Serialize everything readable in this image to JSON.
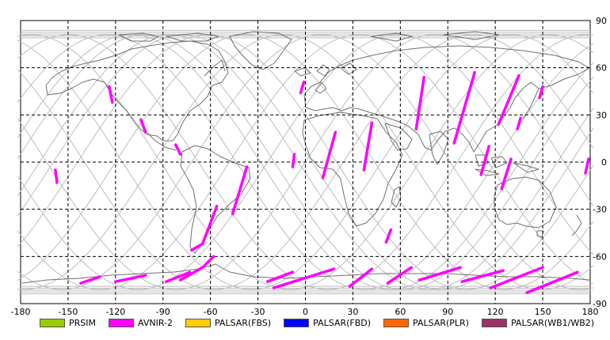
{
  "map": {
    "lon_range": [
      -180,
      180
    ],
    "lat_range": [
      -90,
      90
    ],
    "grid_step": {
      "lon": 30,
      "lat": 30
    },
    "grid_style": "dashed",
    "x_ticks": [
      "-180",
      "-150",
      "-120",
      "-90",
      "-60",
      "-30",
      "0",
      "30",
      "60",
      "90",
      "120",
      "150",
      "180"
    ],
    "y_ticks": [
      "90",
      "60",
      "30",
      "0",
      "-30",
      "-60",
      "-90"
    ],
    "colors": {
      "coastline": "#707070",
      "orbit": "#bdbdbd",
      "grid": "#000000",
      "footprint": "#ff00ff"
    }
  },
  "legend": [
    {
      "label": "PRSIM",
      "color": "#99cc00"
    },
    {
      "label": "AVNIR-2",
      "color": "#ff00ff"
    },
    {
      "label": "PALSAR(FBS)",
      "color": "#ffcc00"
    },
    {
      "label": "PALSAR(FBD)",
      "color": "#0000ff"
    },
    {
      "label": "PALSAR(PLR)",
      "color": "#ff6600"
    },
    {
      "label": "PALSAR(WB1/WB2)",
      "color": "#993366"
    }
  ],
  "footprints": [
    {
      "path": [
        [
          -124,
          48
        ],
        [
          -122,
          38
        ]
      ]
    },
    {
      "path": [
        [
          -104,
          27
        ],
        [
          -101,
          19
        ]
      ]
    },
    {
      "path": [
        [
          -82,
          11
        ],
        [
          -79,
          5
        ]
      ]
    },
    {
      "path": [
        [
          -158,
          -5
        ],
        [
          -157,
          -13
        ]
      ]
    },
    {
      "path": [
        [
          -37,
          -3
        ],
        [
          -46,
          -33
        ]
      ]
    },
    {
      "path": [
        [
          -56,
          -28
        ],
        [
          -65,
          -52
        ],
        [
          -72,
          -56
        ]
      ]
    },
    {
      "path": [
        [
          -58,
          -60
        ],
        [
          -65,
          -67
        ],
        [
          -79,
          -75
        ]
      ]
    },
    {
      "path": [
        [
          -73,
          -70
        ],
        [
          -88,
          -76
        ]
      ]
    },
    {
      "path": [
        [
          -101,
          -72
        ],
        [
          -120,
          -76
        ]
      ]
    },
    {
      "path": [
        [
          -130,
          -73
        ],
        [
          -142,
          -77
        ]
      ]
    },
    {
      "path": [
        [
          -1,
          51
        ],
        [
          -3,
          44
        ]
      ]
    },
    {
      "path": [
        [
          -7,
          5
        ],
        [
          -8,
          -3
        ]
      ]
    },
    {
      "path": [
        [
          19,
          19
        ],
        [
          11,
          -10
        ]
      ]
    },
    {
      "path": [
        [
          42,
          25
        ],
        [
          37,
          -5
        ]
      ]
    },
    {
      "path": [
        [
          54,
          -43
        ],
        [
          51,
          -51
        ]
      ]
    },
    {
      "path": [
        [
          75,
          54
        ],
        [
          70,
          21
        ]
      ]
    },
    {
      "path": [
        [
          107,
          57
        ],
        [
          94,
          12
        ]
      ]
    },
    {
      "path": [
        [
          135,
          55
        ],
        [
          122,
          24
        ]
      ]
    },
    {
      "path": [
        [
          116,
          10
        ],
        [
          111,
          -8
        ]
      ]
    },
    {
      "path": [
        [
          136,
          28
        ],
        [
          134,
          21
        ]
      ]
    },
    {
      "path": [
        [
          150,
          48
        ],
        [
          148,
          41
        ]
      ]
    },
    {
      "path": [
        [
          130,
          2
        ],
        [
          124,
          -17
        ]
      ]
    },
    {
      "path": [
        [
          179,
          2
        ],
        [
          177,
          -7
        ]
      ]
    },
    {
      "path": [
        [
          18,
          -68
        ],
        [
          -20,
          -80
        ]
      ]
    },
    {
      "path": [
        [
          -8,
          -70
        ],
        [
          -24,
          -76
        ]
      ]
    },
    {
      "path": [
        [
          42,
          -68
        ],
        [
          28,
          -79
        ]
      ]
    },
    {
      "path": [
        [
          67,
          -67
        ],
        [
          52,
          -77
        ]
      ]
    },
    {
      "path": [
        [
          98,
          -67
        ],
        [
          72,
          -75
        ]
      ]
    },
    {
      "path": [
        [
          125,
          -69
        ],
        [
          99,
          -76
        ]
      ]
    },
    {
      "path": [
        [
          150,
          -67
        ],
        [
          117,
          -80
        ]
      ]
    },
    {
      "path": [
        [
          172,
          -70
        ],
        [
          140,
          -83
        ]
      ]
    }
  ]
}
